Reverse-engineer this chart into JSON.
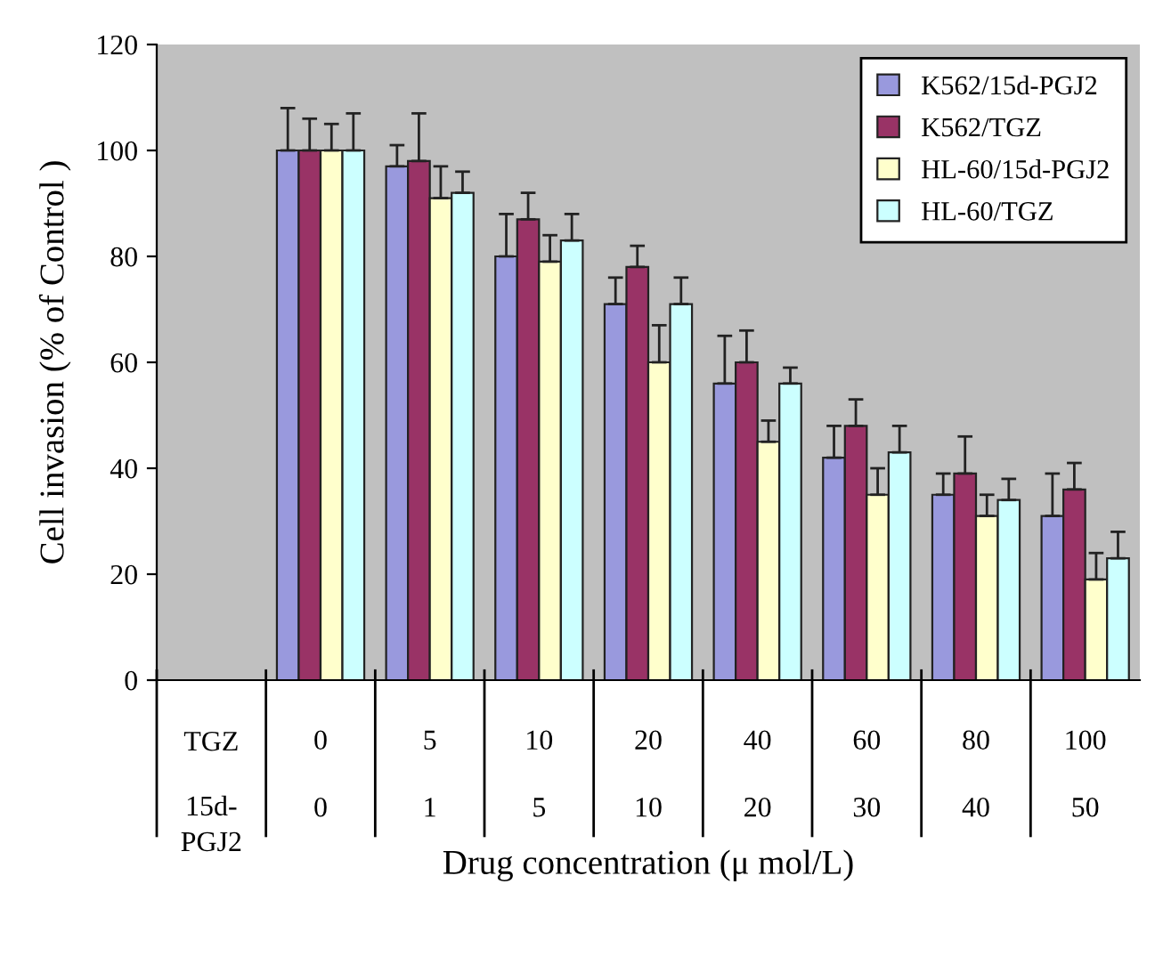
{
  "chart_data": {
    "type": "bar",
    "ylabel": "Cell invasion (% of Control )",
    "xlabel": "Drug concentration (μ mol/L)",
    "categories": [
      "0\n0",
      "5\n1",
      "10\n5",
      "20\n10",
      "40\n20",
      "60\n30",
      "80\n40",
      "100\n50"
    ],
    "annotations": [
      "TGZ",
      "15d-PGJ2"
    ],
    "series": [
      {
        "name": "K562/15d-PGJ2",
        "color": "#9999dd",
        "values": [
          100,
          97,
          80,
          71,
          56,
          42,
          35,
          31
        ],
        "errors": [
          8,
          4,
          8,
          5,
          9,
          6,
          4,
          8
        ]
      },
      {
        "name": "K562/TGZ",
        "color": "#993366",
        "values": [
          100,
          98,
          87,
          78,
          60,
          48,
          39,
          36
        ],
        "errors": [
          6,
          9,
          5,
          4,
          6,
          5,
          7,
          5
        ]
      },
      {
        "name": "HL-60/15d-PGJ2",
        "color": "#ffffcc",
        "values": [
          100,
          91,
          79,
          60,
          45,
          35,
          31,
          19
        ],
        "errors": [
          5,
          6,
          5,
          7,
          4,
          5,
          4,
          5
        ]
      },
      {
        "name": "HL-60/TGZ",
        "color": "#ccffff",
        "values": [
          100,
          92,
          83,
          71,
          56,
          43,
          34,
          23
        ],
        "errors": [
          7,
          4,
          5,
          5,
          3,
          5,
          4,
          5
        ]
      }
    ],
    "ylim": [
      0,
      120
    ],
    "yticks": [
      0,
      20,
      40,
      60,
      80,
      100,
      120
    ],
    "grid": false,
    "legend": "top right"
  }
}
